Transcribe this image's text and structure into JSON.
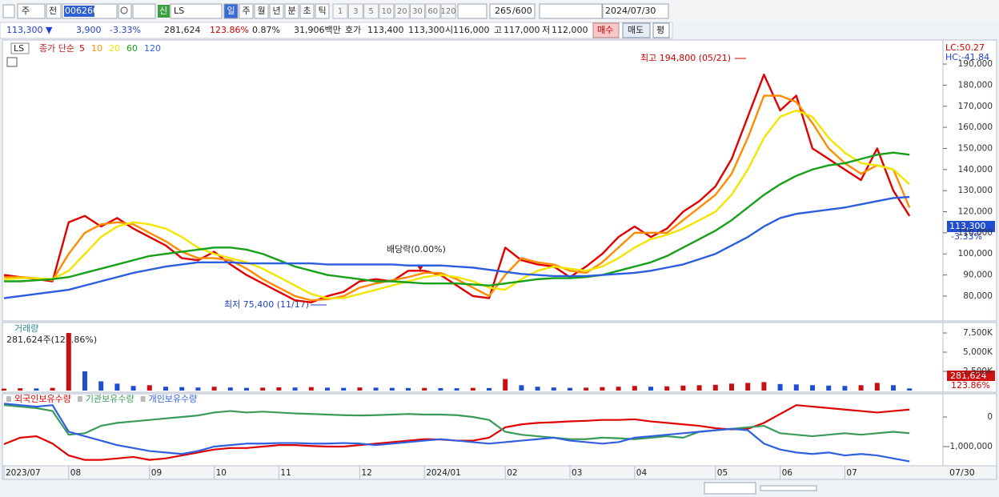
{
  "toolbar": {
    "market": "주",
    "scope": "전",
    "code": "006260",
    "new_badge": "신",
    "name": "LS",
    "periods": [
      "일",
      "주",
      "월",
      "년",
      "분",
      "초",
      "틱"
    ],
    "intervals": [
      "1",
      "3",
      "5",
      "10",
      "20",
      "30",
      "60",
      "120"
    ],
    "count": "265",
    "max": "/600",
    "date": "2024/07/30"
  },
  "quote": {
    "price": "113,300 ▼",
    "change": "3,900",
    "change_pct": "-3.33%",
    "volume": "281,624",
    "volume_ratio": "123.86%",
    "turnover": "0.87%",
    "amount": "31,906백만",
    "ask_label": "호가",
    "ask": "113,400",
    "bid": "113,300",
    "open_label": "시",
    "open": "116,000",
    "high_label": "고",
    "high": "117,000",
    "low_label": "저",
    "low": "112,000",
    "buy": "매수",
    "sell": "매도",
    "avg": "평"
  },
  "footer": {
    "date": "07/30"
  },
  "chart_data": [
    {
      "type": "line",
      "symbol": "LS",
      "series_label": "종가 단순",
      "categories": [
        "2023/07",
        null,
        null,
        null,
        "08",
        null,
        null,
        null,
        null,
        "09",
        null,
        null,
        null,
        "10",
        null,
        null,
        null,
        "11",
        null,
        null,
        null,
        null,
        "12",
        null,
        null,
        null,
        "2024/01",
        null,
        null,
        null,
        null,
        "02",
        null,
        null,
        null,
        "03",
        null,
        null,
        null,
        "04",
        null,
        null,
        null,
        null,
        "05",
        null,
        null,
        null,
        "06",
        null,
        null,
        null,
        "07",
        null,
        null,
        null,
        null
      ],
      "ylim": [
        68600,
        199500
      ],
      "yticks": [
        {
          "value": 80000,
          "label": "80,000"
        },
        {
          "value": 90000,
          "label": "90,000"
        },
        {
          "value": 100000,
          "label": "100,000"
        },
        {
          "value": 110000,
          "label": "110,000"
        },
        {
          "value": 120000,
          "label": "120,000"
        },
        {
          "value": 130000,
          "label": "130,000"
        },
        {
          "value": 140000,
          "label": "140,000"
        },
        {
          "value": 150000,
          "label": "150,000"
        },
        {
          "value": 160000,
          "label": "160,000"
        },
        {
          "value": 170000,
          "label": "170,000"
        },
        {
          "value": 180000,
          "label": "180,000"
        },
        {
          "value": 190000,
          "label": "190,000"
        }
      ],
      "grid": false,
      "annotations": {
        "high": "최고 194,800 (05/21)",
        "low": "최저 75,400 (11/17)",
        "ex_dividend": "배당락(0.00%)",
        "lc": "LC:50.27",
        "hc": "HC:-41.84",
        "last_price": "113,300",
        "last_change": "-3.33%"
      },
      "series": [
        {
          "name": "5",
          "color": "#e00000",
          "values": [
            90000,
            89000,
            88000,
            87000,
            115000,
            118000,
            113000,
            117000,
            112000,
            108000,
            104000,
            98000,
            97000,
            101000,
            95000,
            90000,
            86000,
            82000,
            78000,
            77000,
            80000,
            82000,
            87000,
            88000,
            87000,
            92000,
            92000,
            90000,
            85000,
            80000,
            79000,
            103000,
            97000,
            95000,
            94000,
            89000,
            94000,
            100000,
            108000,
            113000,
            108000,
            112000,
            120000,
            125000,
            132000,
            145000,
            165000,
            185000,
            168000,
            175000,
            150000,
            145000,
            140000,
            135000,
            150000,
            130000,
            118000
          ]
        },
        {
          "name": "10",
          "color": "#ff8c00",
          "values": [
            89000,
            89000,
            88500,
            87500,
            100000,
            110000,
            114000,
            115000,
            114000,
            110000,
            106000,
            101000,
            98000,
            98000,
            97000,
            93000,
            88000,
            84000,
            80000,
            78000,
            78500,
            80000,
            84000,
            86000,
            87500,
            89000,
            91000,
            91000,
            88000,
            84000,
            80000,
            90000,
            98000,
            96000,
            95000,
            92000,
            91000,
            96000,
            103000,
            110000,
            110000,
            110000,
            116000,
            122000,
            128000,
            138000,
            155000,
            175000,
            175000,
            172000,
            162000,
            150000,
            143000,
            138000,
            142000,
            140000,
            122000
          ]
        },
        {
          "name": "20",
          "color": "#f2e600",
          "values": [
            88000,
            88500,
            88500,
            88000,
            92000,
            100000,
            108000,
            113000,
            115000,
            114000,
            112000,
            108000,
            103000,
            100000,
            98000,
            96000,
            93000,
            89000,
            85000,
            81000,
            79000,
            79000,
            81000,
            83000,
            85000,
            87000,
            89000,
            90000,
            89000,
            87000,
            84000,
            83000,
            88000,
            92000,
            94000,
            93000,
            92000,
            94000,
            98000,
            103000,
            107000,
            109000,
            112000,
            116000,
            120000,
            128000,
            140000,
            155000,
            165000,
            168000,
            165000,
            155000,
            148000,
            143000,
            142000,
            140000,
            133000
          ]
        },
        {
          "name": "60",
          "color": "#18a018",
          "values": [
            87000,
            87000,
            87500,
            88000,
            89000,
            91000,
            93000,
            95000,
            97000,
            99000,
            100000,
            101000,
            102000,
            103000,
            103000,
            102000,
            100000,
            97000,
            94000,
            92000,
            90000,
            89000,
            88000,
            87000,
            87000,
            86500,
            86000,
            86000,
            86000,
            85500,
            85000,
            86000,
            87000,
            88000,
            88500,
            88500,
            89000,
            90000,
            92000,
            94000,
            96000,
            99000,
            103000,
            107000,
            111000,
            116000,
            122000,
            128000,
            133000,
            137000,
            140000,
            142000,
            143000,
            145000,
            147000,
            148000,
            147000
          ]
        },
        {
          "name": "120",
          "color": "#2a5de0",
          "values": [
            79000,
            80000,
            81000,
            82000,
            83000,
            85000,
            87000,
            89000,
            91000,
            92500,
            94000,
            95000,
            96000,
            96000,
            96000,
            95500,
            95500,
            95500,
            95500,
            95500,
            95000,
            95000,
            95000,
            95000,
            95000,
            94500,
            94500,
            94500,
            94000,
            93500,
            92500,
            91500,
            90500,
            90000,
            89500,
            89500,
            89500,
            90000,
            90500,
            91000,
            92000,
            93500,
            95000,
            97500,
            100000,
            104000,
            108000,
            113000,
            117000,
            119000,
            120000,
            121000,
            122000,
            123500,
            125000,
            126500,
            127000
          ]
        }
      ]
    },
    {
      "type": "bar",
      "title": "거래량",
      "subtitle": "281,624주(123.86%)",
      "last_label": "281,624",
      "last_pct": "123.86%",
      "color": "#c81010",
      "down_color": "#1f4fd0",
      "ylim": [
        0,
        8650000
      ],
      "yticks": [
        {
          "value": 2500000,
          "label": "2,500K"
        },
        {
          "value": 5000000,
          "label": "5,000K"
        },
        {
          "value": 7500000,
          "label": "7,500K"
        }
      ],
      "values": [
        250000,
        300000,
        280000,
        350000,
        7500000,
        2500000,
        1200000,
        900000,
        600000,
        700000,
        500000,
        450000,
        400000,
        500000,
        400000,
        350000,
        380000,
        420000,
        400000,
        450000,
        380000,
        350000,
        400000,
        380000,
        350000,
        330000,
        350000,
        320000,
        300000,
        350000,
        330000,
        1500000,
        700000,
        500000,
        400000,
        350000,
        380000,
        450000,
        500000,
        600000,
        500000,
        550000,
        650000,
        700000,
        750000,
        900000,
        1000000,
        1100000,
        850000,
        800000,
        700000,
        650000,
        600000,
        700000,
        1000000,
        700000,
        281624
      ]
    },
    {
      "type": "line",
      "ylim": [
        -1595000,
        432000
      ],
      "yticks": [
        0,
        {
          "value": -1000000,
          "label": "-1,000,000"
        }
      ],
      "series": [
        {
          "name": "외국인보유수량",
          "color": "#e00000",
          "values": [
            -920000,
            -700000,
            -650000,
            -900000,
            -1300000,
            -1450000,
            -1450000,
            -1400000,
            -1350000,
            -1450000,
            -1400000,
            -1300000,
            -1200000,
            -1100000,
            -1050000,
            -1050000,
            -1000000,
            -950000,
            -950000,
            -980000,
            -1000000,
            -1000000,
            -950000,
            -900000,
            -850000,
            -800000,
            -750000,
            -760000,
            -800000,
            -800000,
            -700000,
            -350000,
            -250000,
            -200000,
            -180000,
            -150000,
            -130000,
            -100000,
            -100000,
            -80000,
            -150000,
            -200000,
            -250000,
            -300000,
            -380000,
            -420000,
            -400000,
            -200000,
            100000,
            400000,
            350000,
            300000,
            250000,
            200000,
            150000,
            200000,
            250000
          ]
        },
        {
          "name": "기관보유수량",
          "color": "#3a9a5a",
          "values": [
            400000,
            350000,
            300000,
            200000,
            -600000,
            -550000,
            -300000,
            -200000,
            -150000,
            -100000,
            -50000,
            0,
            50000,
            150000,
            200000,
            150000,
            180000,
            150000,
            120000,
            100000,
            80000,
            60000,
            50000,
            60000,
            80000,
            100000,
            80000,
            80000,
            60000,
            0,
            -100000,
            -500000,
            -600000,
            -650000,
            -700000,
            -750000,
            -750000,
            -700000,
            -720000,
            -750000,
            -700000,
            -650000,
            -700000,
            -500000,
            -450000,
            -400000,
            -350000,
            -300000,
            -550000,
            -600000,
            -650000,
            -600000,
            -550000,
            -600000,
            -550000,
            -500000,
            -550000
          ]
        },
        {
          "name": "개인보유수량",
          "color": "#3060e0",
          "values": [
            450000,
            400000,
            350000,
            400000,
            -500000,
            -650000,
            -800000,
            -950000,
            -1050000,
            -1150000,
            -1200000,
            -1250000,
            -1150000,
            -1000000,
            -950000,
            -900000,
            -900000,
            -880000,
            -880000,
            -900000,
            -900000,
            -880000,
            -900000,
            -950000,
            -900000,
            -850000,
            -800000,
            -750000,
            -800000,
            -850000,
            -900000,
            -850000,
            -800000,
            -750000,
            -700000,
            -800000,
            -850000,
            -900000,
            -850000,
            -700000,
            -650000,
            -600000,
            -550000,
            -500000,
            -450000,
            -400000,
            -450000,
            -900000,
            -1100000,
            -1200000,
            -1250000,
            -1200000,
            -1300000,
            -1250000,
            -1300000,
            -1400000,
            -1500000
          ]
        }
      ]
    }
  ]
}
